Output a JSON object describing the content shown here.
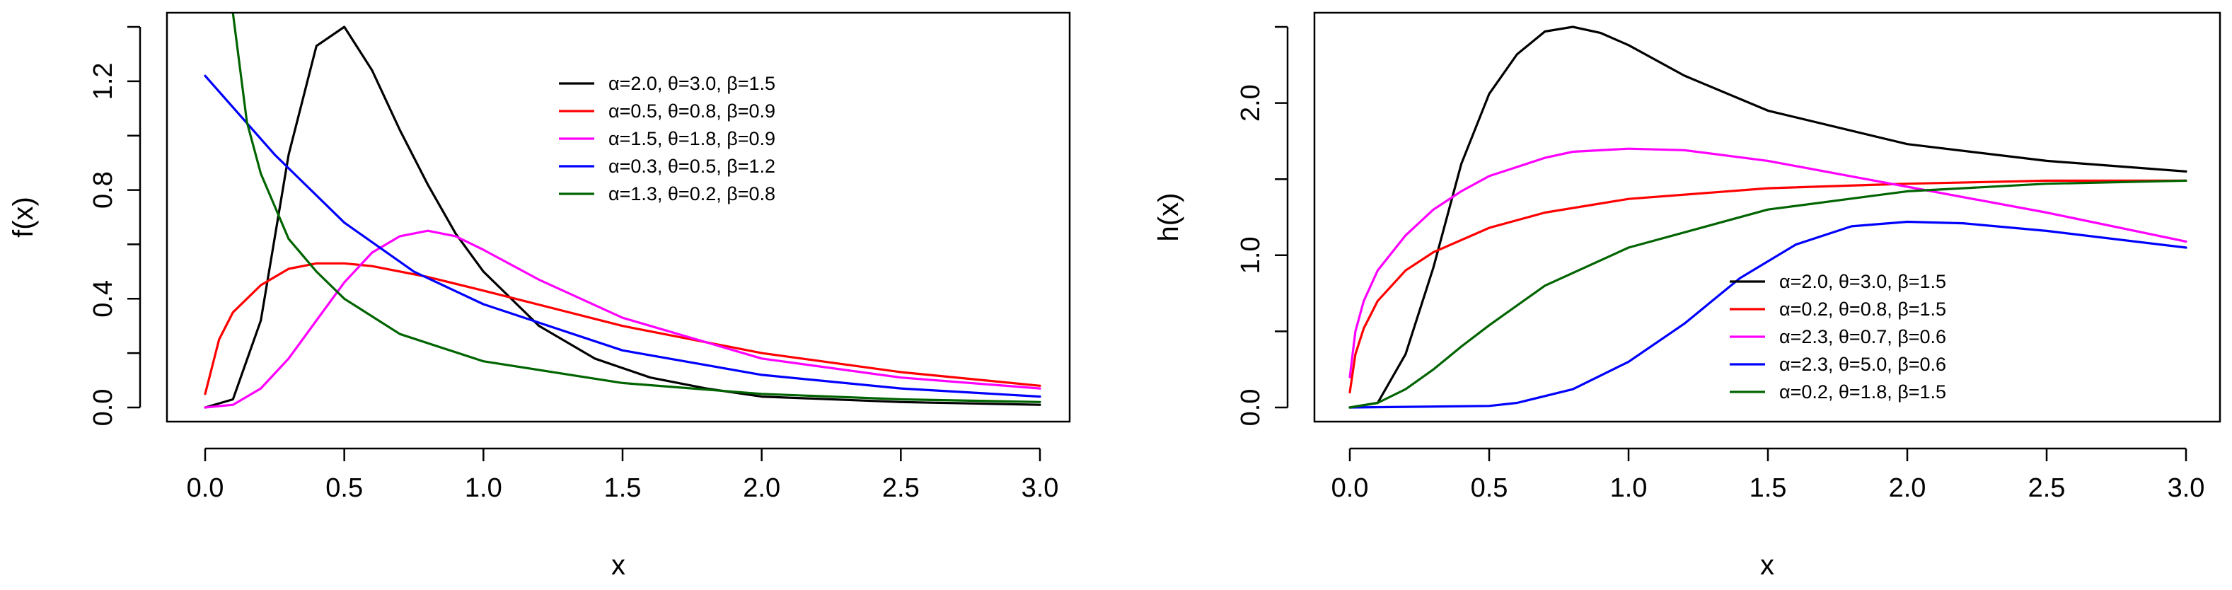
{
  "chart_data": [
    {
      "type": "line",
      "xlabel": "x",
      "ylabel": "f(x)",
      "xlim": [
        0,
        3
      ],
      "ylim": [
        0,
        1.4
      ],
      "xticks": [
        "0.0",
        "0.5",
        "1.0",
        "1.5",
        "2.0",
        "2.5",
        "3.0"
      ],
      "yticks": [
        "0.0",
        "0.4",
        "0.8",
        "1.2"
      ],
      "grid": false,
      "legend_position": "top-right",
      "series": [
        {
          "name": "α=2.0, θ=3.0, β=1.5",
          "color": "#000000",
          "x": [
            0,
            0.1,
            0.2,
            0.3,
            0.4,
            0.5,
            0.6,
            0.7,
            0.8,
            0.9,
            1.0,
            1.2,
            1.4,
            1.6,
            1.8,
            2.0,
            2.5,
            3.0
          ],
          "y": [
            0,
            0.03,
            0.32,
            0.93,
            1.33,
            1.4,
            1.24,
            1.02,
            0.82,
            0.64,
            0.5,
            0.3,
            0.18,
            0.11,
            0.07,
            0.04,
            0.02,
            0.01
          ]
        },
        {
          "name": "α=0.5, θ=0.8, β=0.9",
          "color": "#ff0000",
          "x": [
            0,
            0.05,
            0.1,
            0.2,
            0.3,
            0.4,
            0.5,
            0.6,
            0.8,
            1.0,
            1.5,
            2.0,
            2.5,
            3.0
          ],
          "y": [
            0.05,
            0.25,
            0.35,
            0.45,
            0.51,
            0.53,
            0.53,
            0.52,
            0.48,
            0.43,
            0.3,
            0.2,
            0.13,
            0.08
          ]
        },
        {
          "name": "α=1.5, θ=1.8, β=0.9",
          "color": "#ff00ff",
          "x": [
            0,
            0.1,
            0.2,
            0.3,
            0.4,
            0.5,
            0.6,
            0.7,
            0.8,
            0.9,
            1.0,
            1.2,
            1.5,
            2.0,
            2.5,
            3.0
          ],
          "y": [
            0,
            0.01,
            0.07,
            0.18,
            0.32,
            0.46,
            0.57,
            0.63,
            0.65,
            0.63,
            0.58,
            0.47,
            0.33,
            0.18,
            0.11,
            0.07
          ]
        },
        {
          "name": "α=0.3, θ=0.5, β=1.2",
          "color": "#0000ff",
          "x": [
            0,
            0.25,
            0.5,
            0.75,
            1.0,
            1.5,
            2.0,
            2.5,
            3.0
          ],
          "y": [
            1.22,
            0.93,
            0.68,
            0.5,
            0.38,
            0.21,
            0.12,
            0.07,
            0.04
          ]
        },
        {
          "name": "α=1.3, θ=0.2, β=0.8",
          "color": "#006400",
          "x": [
            0.1,
            0.15,
            0.2,
            0.3,
            0.4,
            0.5,
            0.7,
            1.0,
            1.5,
            2.0,
            2.5,
            3.0
          ],
          "y": [
            1.45,
            1.05,
            0.86,
            0.62,
            0.5,
            0.4,
            0.27,
            0.17,
            0.09,
            0.05,
            0.03,
            0.02
          ]
        }
      ]
    },
    {
      "type": "line",
      "xlabel": "x",
      "ylabel": "h(x)",
      "xlim": [
        0,
        3
      ],
      "ylim": [
        0,
        2.5
      ],
      "xticks": [
        "0.0",
        "0.5",
        "1.0",
        "1.5",
        "2.0",
        "2.5",
        "3.0"
      ],
      "yticks": [
        "0.0",
        "1.0",
        "2.0"
      ],
      "yticks_unlabeled": [
        0.5,
        1.5
      ],
      "grid": false,
      "legend_position": "bottom-right",
      "series": [
        {
          "name": "α=2.0, θ=3.0, β=1.5",
          "color": "#000000",
          "x": [
            0,
            0.1,
            0.2,
            0.3,
            0.4,
            0.5,
            0.6,
            0.7,
            0.8,
            0.9,
            1.0,
            1.2,
            1.5,
            2.0,
            2.5,
            3.0
          ],
          "y": [
            0,
            0.03,
            0.35,
            0.92,
            1.6,
            2.06,
            2.32,
            2.47,
            2.5,
            2.46,
            2.38,
            2.18,
            1.95,
            1.73,
            1.62,
            1.55
          ]
        },
        {
          "name": "α=0.2, θ=0.8, β=1.5",
          "color": "#ff0000",
          "x": [
            0,
            0.02,
            0.05,
            0.1,
            0.2,
            0.3,
            0.5,
            0.7,
            1.0,
            1.5,
            2.0,
            2.5,
            3.0
          ],
          "y": [
            0.1,
            0.35,
            0.52,
            0.7,
            0.9,
            1.02,
            1.18,
            1.28,
            1.37,
            1.44,
            1.47,
            1.49,
            1.49
          ]
        },
        {
          "name": "α=2.3, θ=0.7, β=0.6",
          "color": "#ff00ff",
          "x": [
            0,
            0.02,
            0.05,
            0.1,
            0.2,
            0.3,
            0.4,
            0.5,
            0.7,
            0.8,
            1.0,
            1.2,
            1.5,
            2.0,
            2.5,
            3.0
          ],
          "y": [
            0.2,
            0.5,
            0.7,
            0.9,
            1.13,
            1.3,
            1.42,
            1.52,
            1.64,
            1.68,
            1.7,
            1.69,
            1.62,
            1.45,
            1.28,
            1.09
          ]
        },
        {
          "name": "α=2.3, θ=5.0, β=0.6",
          "color": "#0000ff",
          "x": [
            0,
            0.5,
            0.6,
            0.8,
            1.0,
            1.2,
            1.4,
            1.6,
            1.8,
            2.0,
            2.2,
            2.5,
            3.0
          ],
          "y": [
            0,
            0.01,
            0.03,
            0.12,
            0.3,
            0.55,
            0.85,
            1.07,
            1.19,
            1.22,
            1.21,
            1.16,
            1.05
          ]
        },
        {
          "name": "α=0.2, θ=1.8, β=1.5",
          "color": "#006400",
          "x": [
            0,
            0.1,
            0.2,
            0.3,
            0.4,
            0.5,
            0.7,
            1.0,
            1.5,
            2.0,
            2.5,
            3.0
          ],
          "y": [
            0,
            0.03,
            0.12,
            0.25,
            0.4,
            0.54,
            0.8,
            1.05,
            1.3,
            1.42,
            1.47,
            1.49
          ]
        }
      ]
    }
  ]
}
